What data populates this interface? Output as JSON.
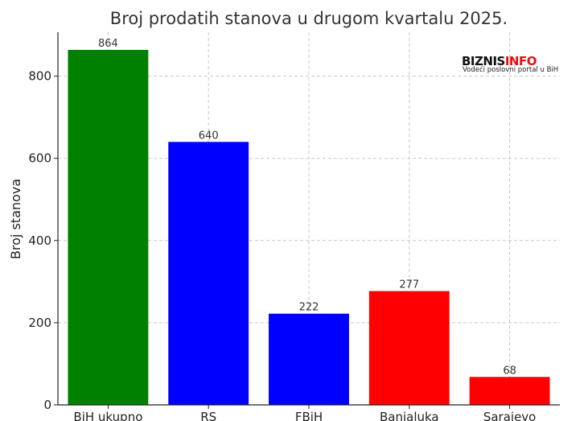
{
  "chart_data": {
    "type": "bar",
    "title": "Broj prodatih stanova u drugom kvartalu 2025.",
    "xlabel": "",
    "ylabel": "Broj stanova",
    "categories": [
      "BiH ukupno",
      "RS",
      "FBiH",
      "Banjaluka",
      "Sarajevo"
    ],
    "values": [
      864,
      640,
      222,
      277,
      68
    ],
    "bar_colors": [
      "#008000",
      "#0000ff",
      "#0000ff",
      "#ff0000",
      "#ff0000"
    ],
    "ylim": [
      0,
      907
    ],
    "yticks": [
      0,
      200,
      400,
      600,
      800
    ],
    "grid": true,
    "grid_style": "dashed"
  },
  "logo": {
    "part1": "BIZNIS",
    "part2": "INFO",
    "tagline": "Vodeći poslovni portal u BiH",
    "color1": "#111111",
    "color2": "#e01010"
  }
}
